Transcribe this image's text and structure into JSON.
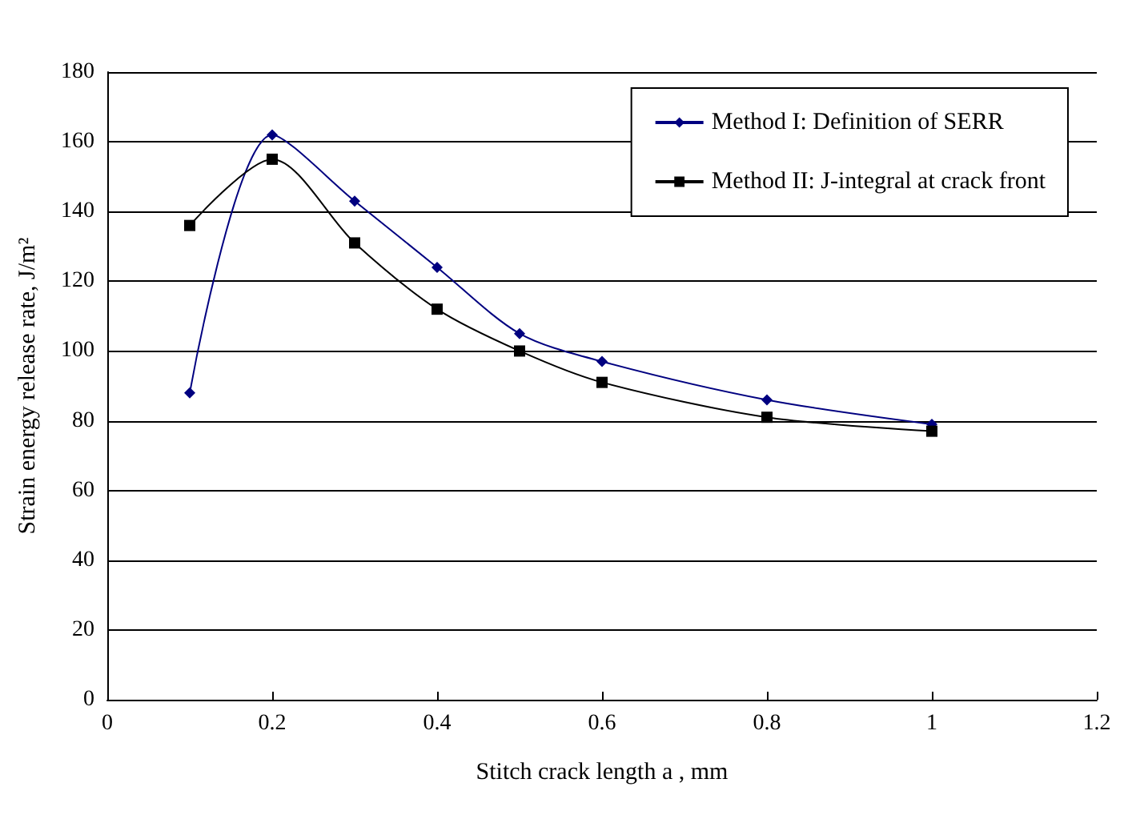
{
  "chart_data": {
    "type": "line",
    "xlabel": "Stitch crack length a , mm",
    "ylabel": "Strain energy release rate, J/m²",
    "xlim": [
      0,
      1.2
    ],
    "xticks": [
      0,
      0.2,
      0.4,
      0.6,
      0.8,
      1,
      1.2
    ],
    "ylim": [
      0,
      180
    ],
    "yticks": [
      0,
      20,
      40,
      60,
      80,
      100,
      120,
      140,
      160,
      180
    ],
    "grid": "y",
    "legend": "top right",
    "line_style": "solid",
    "series": [
      {
        "name": "Method I: Definition of SERR",
        "color": "#000080",
        "marker": "diamond",
        "x": [
          0.1,
          0.2,
          0.3,
          0.4,
          0.5,
          0.6,
          0.8,
          1.0
        ],
        "values": [
          88,
          162,
          143,
          124,
          105,
          97,
          86,
          79
        ]
      },
      {
        "name": "Method II: J-integral at crack front",
        "color": "#000000",
        "marker": "square",
        "x": [
          0.1,
          0.2,
          0.3,
          0.4,
          0.5,
          0.6,
          0.8,
          1.0
        ],
        "values": [
          136,
          155,
          131,
          112,
          100,
          91,
          81,
          77
        ]
      }
    ]
  }
}
